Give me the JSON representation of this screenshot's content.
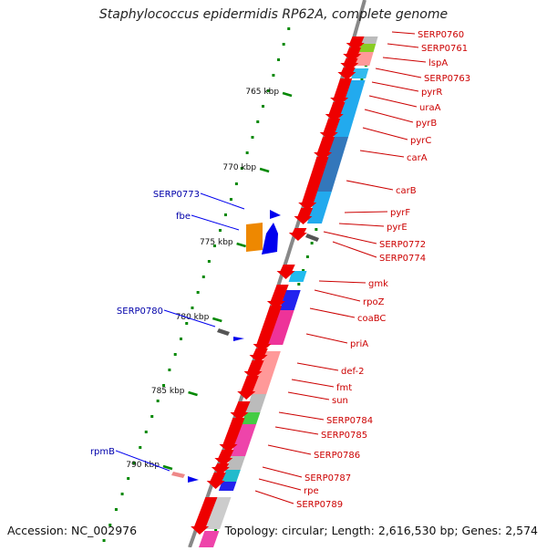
{
  "title": "Staphylococcus epidermidis RP62A, complete genome",
  "footer": {
    "accession": "Accession: NC_002976",
    "topology": "Topology: circular; Length: 2,616,530 bp; Genes: 2,574"
  },
  "colors": {
    "backbone": "#888888",
    "forward_gene": "#ee0000",
    "reverse_gene": "#0000ee",
    "right_label": "#cc0000",
    "left_label": "#0000aa",
    "tick": "#008800"
  },
  "scale": {
    "ticks": [
      "765 kbp",
      "770 kbp",
      "775 kbp",
      "780 kbp",
      "785 kbp",
      "790 kbp"
    ]
  },
  "right_labels": [
    "SERP0760",
    "SERP0761",
    "lspA",
    "SERP0763",
    "pyrR",
    "uraA",
    "pyrB",
    "pyrC",
    "carA",
    "carB",
    "pyrF",
    "pyrE",
    "SERP0772",
    "SERP0774",
    "gmk",
    "rpoZ",
    "coaBC",
    "priA",
    "def-2",
    "fmt",
    "sun",
    "SERP0784",
    "SERP0785",
    "SERP0786",
    "SERP0787",
    "rpe",
    "SERP0789"
  ],
  "left_labels": [
    "SERP0773",
    "fbe",
    "SERP0780",
    "rpmB"
  ]
}
